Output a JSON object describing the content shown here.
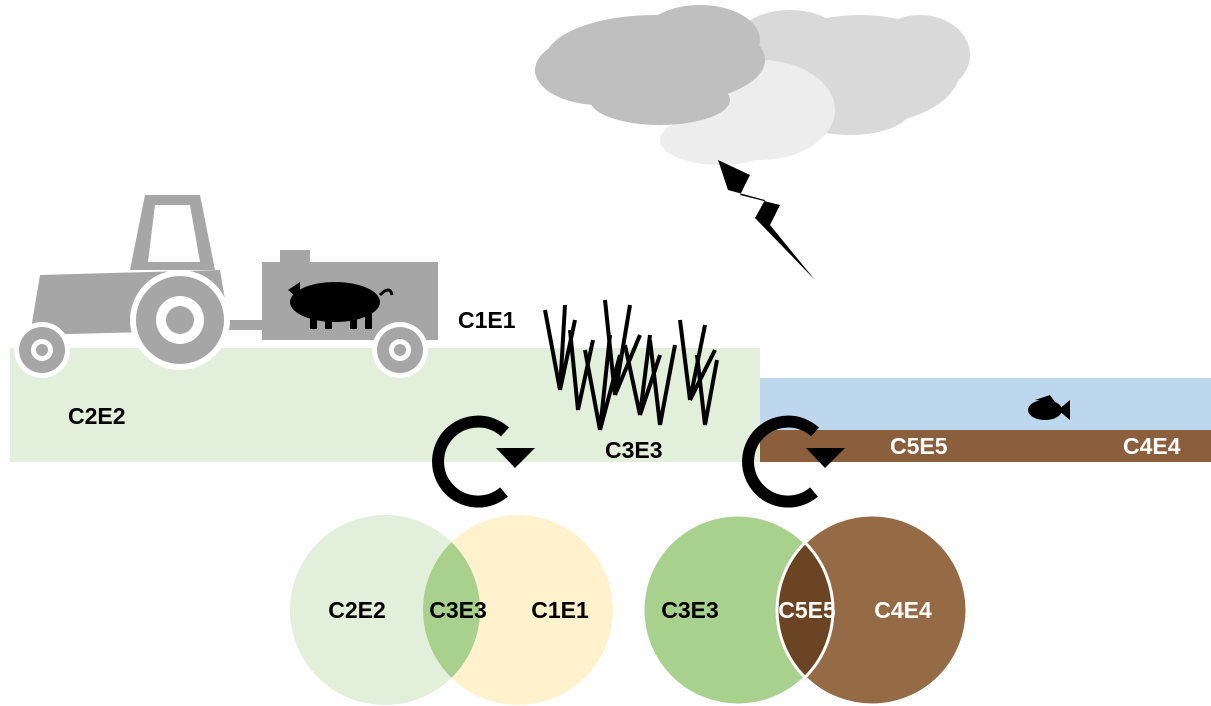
{
  "scene": {
    "labels": [
      "C1E1",
      "C2E2",
      "C3E3",
      "C5E5",
      "C4E4"
    ]
  },
  "venns": [
    {
      "left": "C2E2",
      "overlap": "C3E3",
      "right": "C1E1"
    },
    {
      "left": "C3E3",
      "overlap": "C5E5",
      "right": "C4E4"
    }
  ]
}
